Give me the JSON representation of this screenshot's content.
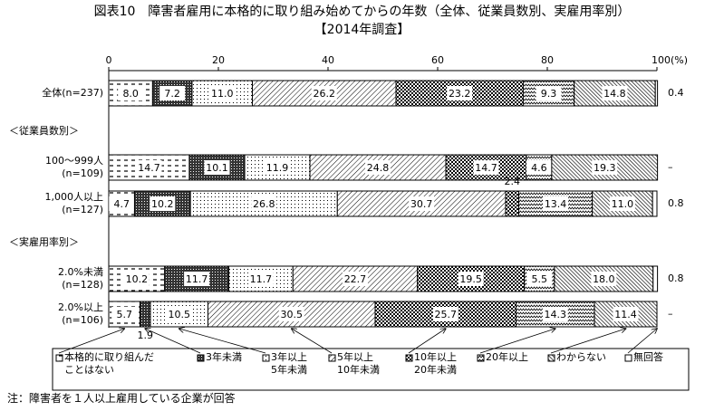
{
  "chart_data": {
    "type": "bar",
    "orientation": "horizontal",
    "stacked": true,
    "title": "図表10　障害者雇用に本格的に取り組み始めてからの年数（全体、従業員数別、実雇用率別）",
    "subtitle": "【2014年調査】",
    "note": "注：障害者を１人以上雇用している企業が回答",
    "categories": [
      "全体(n=237)",
      "＜従業員数別＞",
      "100～999人\n(n=109)",
      "1,000人以上\n(n=127)",
      "＜実雇用率別＞",
      "2.0%未満\n(n=128)",
      "2.0%以上\n(n=106)"
    ],
    "xlim": [
      0,
      100
    ],
    "xticks": [
      0,
      20,
      40,
      60,
      80,
      {
        "value": 100,
        "label": "100(%)"
      }
    ],
    "series": [
      {
        "name": "本格的に取り組んだ\nことはない",
        "color": "#000000",
        "pattern": "dash",
        "values": [
          8.0,
          null,
          14.7,
          4.7,
          null,
          10.2,
          5.7
        ],
        "value_labels": [
          "8.0",
          null,
          "14.7",
          "4.7",
          null,
          "10.2",
          "5.7"
        ]
      },
      {
        "name": "3年未満",
        "color": "#000000",
        "pattern": "grid",
        "values": [
          7.2,
          null,
          10.1,
          10.2,
          null,
          11.7,
          1.9
        ],
        "value_labels": [
          "7.2",
          null,
          "10.1",
          "10.2",
          null,
          "11.7",
          "1.9"
        ]
      },
      {
        "name": "3年以上\n5年未満",
        "color": "#000000",
        "pattern": "dots",
        "values": [
          11.0,
          null,
          11.9,
          26.8,
          null,
          11.7,
          10.5
        ],
        "value_labels": [
          "11.0",
          null,
          "11.9",
          "26.8",
          null,
          "11.7",
          "10.5"
        ]
      },
      {
        "name": "5年以上\n10年未満",
        "color": "#000000",
        "pattern": "diag",
        "values": [
          26.2,
          null,
          24.8,
          30.7,
          null,
          22.7,
          30.5
        ],
        "value_labels": [
          "26.2",
          null,
          "24.8",
          "30.7",
          null,
          "22.7",
          "30.5"
        ]
      },
      {
        "name": "10年以上\n20年未満",
        "color": "#000000",
        "pattern": "checker",
        "values": [
          23.2,
          null,
          14.7,
          2.4,
          null,
          19.5,
          25.7
        ],
        "value_labels": [
          "23.2",
          null,
          "14.7",
          "2.4",
          null,
          "19.5",
          "25.7"
        ]
      },
      {
        "name": "20年以上",
        "color": "#000000",
        "pattern": "wave",
        "values": [
          9.3,
          null,
          4.6,
          13.4,
          null,
          5.5,
          14.3
        ],
        "value_labels": [
          "9.3",
          null,
          "4.6",
          "13.4",
          null,
          "5.5",
          "14.3"
        ]
      },
      {
        "name": "わからない",
        "color": "#000000",
        "pattern": "hatch",
        "values": [
          14.8,
          null,
          19.3,
          11.0,
          null,
          18.0,
          11.4
        ],
        "value_labels": [
          "14.8",
          null,
          "19.3",
          "11.0",
          null,
          "18.0",
          "11.4"
        ]
      },
      {
        "name": "無回答",
        "color": "#000000",
        "pattern": "none",
        "values": [
          0.4,
          null,
          null,
          0.8,
          null,
          0.8,
          null
        ],
        "value_labels": [
          "0.4",
          null,
          "–",
          "0.8",
          null,
          "0.8",
          "–"
        ]
      }
    ]
  }
}
